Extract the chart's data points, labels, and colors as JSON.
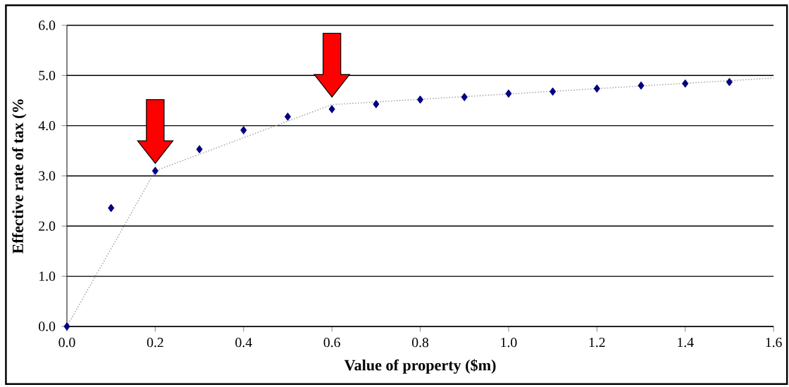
{
  "chart_data": {
    "type": "scatter",
    "xlabel": "Value of property ($m)",
    "ylabel": "Effective rate of tax (%",
    "xlim": [
      0,
      1.6
    ],
    "ylim": [
      0,
      6
    ],
    "xticks": [
      {
        "value": 0,
        "label": "0.0"
      },
      0.2,
      0.4,
      0.6,
      0.8,
      {
        "value": 1,
        "label": "1.0"
      },
      1.2,
      1.4,
      1.6
    ],
    "yticks": [
      {
        "value": 0,
        "label": "0.0"
      },
      {
        "value": 1,
        "label": "1.0"
      },
      {
        "value": 2,
        "label": "2.0"
      },
      {
        "value": 3,
        "label": "3.0"
      },
      {
        "value": 4,
        "label": "4.0"
      },
      {
        "value": 5,
        "label": "5.0"
      },
      {
        "value": 6,
        "label": "6.0"
      }
    ],
    "grid": "y",
    "series": [
      {
        "color": "#000080",
        "marker": "diamond",
        "x": [
          0,
          0.1,
          0.2,
          0.3,
          0.4,
          0.5,
          0.6,
          0.7,
          0.8,
          0.9,
          1.0,
          1.1,
          1.2,
          1.3,
          1.4,
          1.5
        ],
        "values": [
          0,
          2.36,
          3.1,
          3.53,
          3.91,
          4.18,
          4.33,
          4.43,
          4.52,
          4.57,
          4.64,
          4.68,
          4.74,
          4.8,
          4.84,
          4.87
        ]
      },
      {
        "type": "line",
        "color": "#a0a0a0",
        "marker": "none",
        "line_style": "dotted",
        "x": [
          0,
          0.2,
          0.6,
          1.6
        ],
        "values": [
          0,
          3.1,
          4.42,
          4.95
        ]
      }
    ]
  }
}
